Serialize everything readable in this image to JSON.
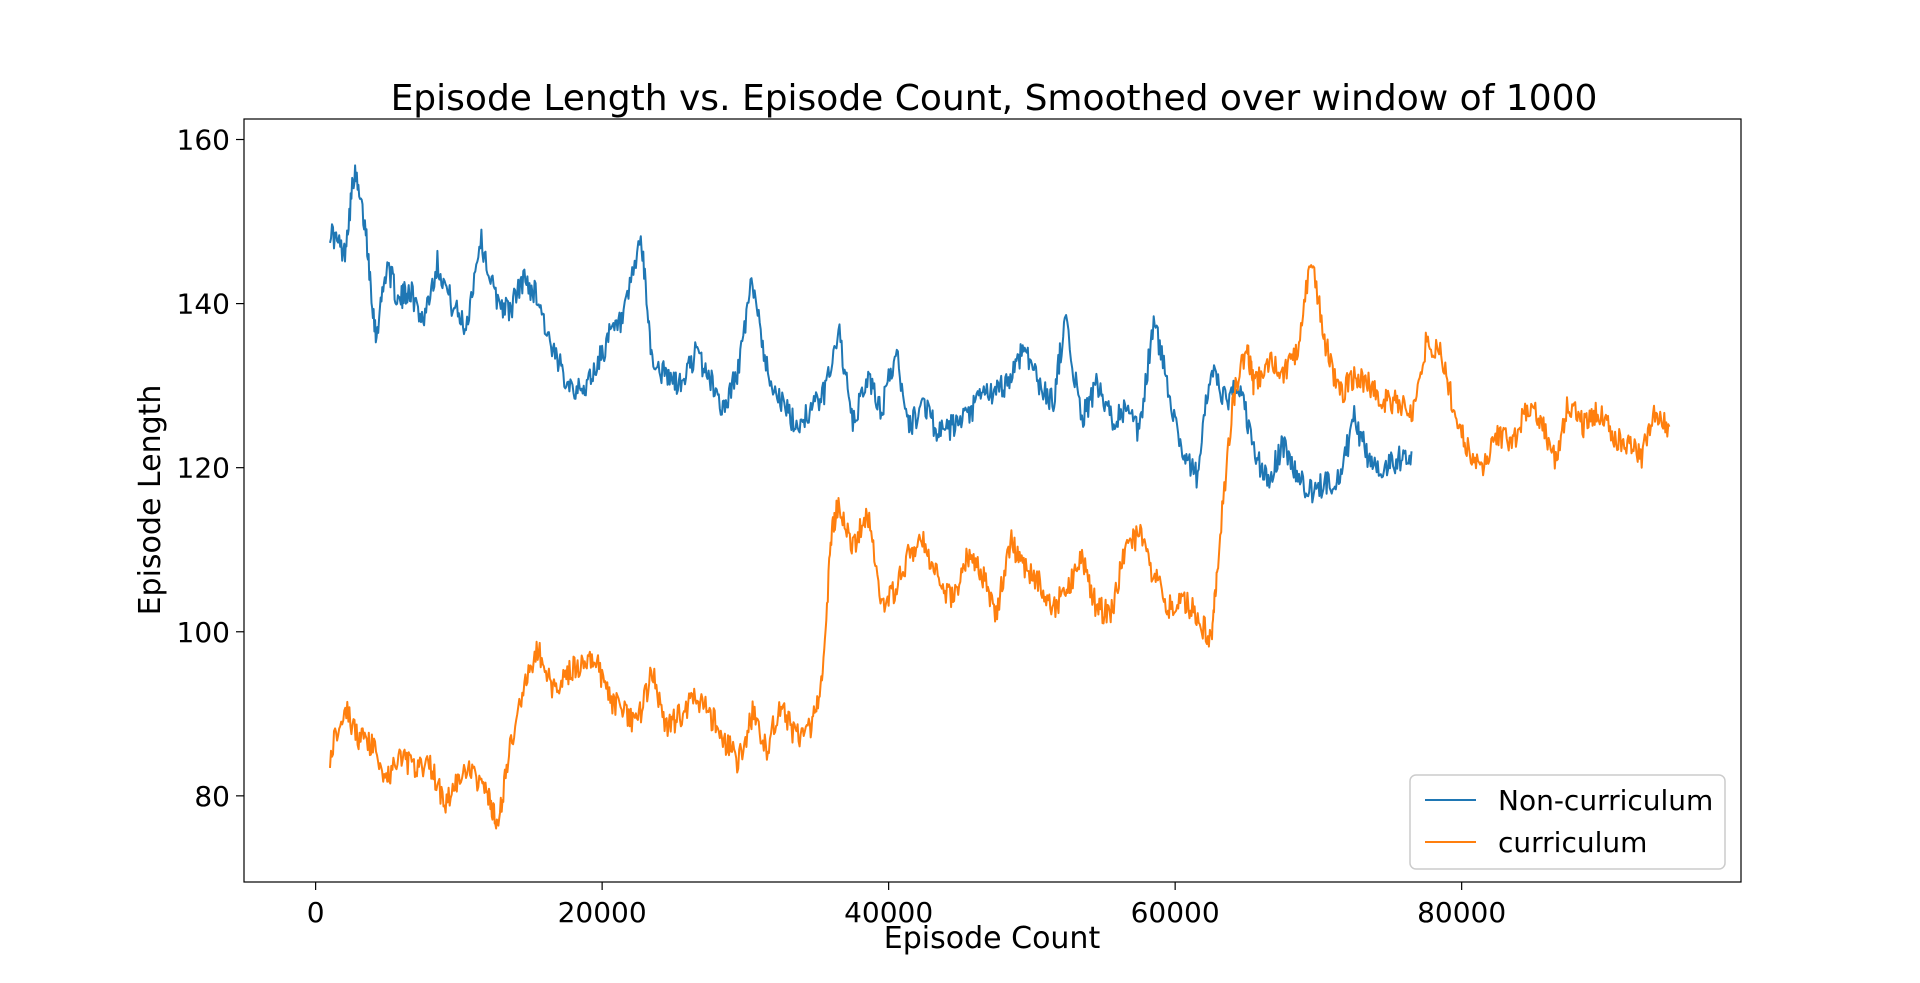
{
  "chart_data": {
    "type": "line",
    "title": "Episode Length vs. Episode Count, Smoothed over window of 1000",
    "xlabel": "Episode Count",
    "ylabel": "Episode Length",
    "xlim": [
      -5000,
      99500
    ],
    "ylim": [
      69.5,
      162.5
    ],
    "xticks": [
      0,
      20000,
      40000,
      60000,
      80000
    ],
    "yticks": [
      80,
      100,
      120,
      140,
      160
    ],
    "grid": false,
    "legend_position": "bottom-right",
    "series": [
      {
        "name": "Non-curriculum",
        "color": "#1f77b4",
        "x": [
          1000,
          2000,
          2700,
          3500,
          4200,
          5000,
          5800,
          6500,
          7500,
          8500,
          9500,
          10500,
          11500,
          12500,
          13500,
          14500,
          15500,
          16500,
          17500,
          18500,
          19500,
          20500,
          21500,
          22700,
          23500,
          24500,
          25500,
          26500,
          27500,
          28500,
          29500,
          30500,
          31500,
          32500,
          33500,
          34500,
          35500,
          36500,
          37500,
          38500,
          39500,
          40500,
          41500,
          42500,
          43500,
          44500,
          45500,
          46500,
          47500,
          48500,
          49500,
          50500,
          51500,
          52300,
          53500,
          54500,
          55500,
          56500,
          57500,
          58500,
          59500,
          60500,
          61500,
          62500,
          63500,
          64500,
          65500,
          66500,
          67500,
          68500,
          69500,
          70500,
          71500,
          72500,
          73500,
          74500,
          75500,
          76500
        ],
        "y": [
          149,
          146,
          156,
          149,
          136,
          145,
          140,
          142,
          138,
          145,
          140,
          137,
          148,
          141,
          139,
          143,
          141,
          134,
          131,
          129,
          132,
          136,
          138,
          148,
          133,
          131,
          130,
          134,
          131,
          127,
          132,
          143,
          132,
          128,
          125,
          127,
          129,
          137,
          125,
          131,
          127,
          134,
          125,
          128,
          124,
          125,
          126,
          129,
          129,
          131,
          135,
          130,
          128,
          138,
          126,
          130,
          126,
          127,
          124,
          138,
          130,
          122,
          119,
          132,
          128,
          130,
          122,
          118,
          123,
          119,
          117,
          118,
          119,
          126,
          121,
          120,
          121,
          122
        ]
      },
      {
        "name": "curriculum",
        "color": "#ff7f0e",
        "x": [
          1000,
          2000,
          3000,
          4000,
          5000,
          6000,
          7000,
          8000,
          9000,
          10000,
          11000,
          12000,
          12700,
          13500,
          14500,
          15500,
          16500,
          17500,
          18500,
          19500,
          20500,
          21500,
          22500,
          23500,
          24500,
          25500,
          26500,
          27500,
          28500,
          29500,
          30500,
          31500,
          32500,
          33500,
          34500,
          35300,
          36000,
          36500,
          37500,
          38500,
          39500,
          40500,
          41500,
          42500,
          43500,
          44500,
          45500,
          46500,
          47500,
          48500,
          49500,
          50500,
          51500,
          52500,
          53500,
          54500,
          55500,
          56500,
          57500,
          58500,
          59500,
          60500,
          61500,
          62500,
          63000,
          64000,
          65000,
          65500,
          66500,
          67500,
          68500,
          69500,
          70500,
          71500,
          72500,
          73500,
          74500,
          75500,
          76500,
          77500,
          78500,
          79500,
          80500,
          81500,
          82500,
          83500,
          84500,
          85500,
          86500,
          87500,
          88500,
          89500,
          90500,
          91500,
          92500,
          93500,
          94500
        ],
        "y": [
          85,
          91,
          87,
          86,
          82,
          85,
          83,
          84,
          79,
          82,
          83,
          80,
          76,
          85,
          93,
          98,
          93,
          95,
          96,
          97,
          92,
          90,
          89,
          95,
          88,
          90,
          92,
          90,
          87,
          84,
          90,
          86,
          91,
          87,
          88,
          93,
          112,
          116,
          110,
          115,
          103,
          105,
          110,
          111,
          106,
          104,
          109,
          107,
          102,
          111,
          108,
          106,
          103,
          105,
          109,
          103,
          102,
          110,
          112,
          107,
          103,
          104,
          102,
          99,
          109,
          128,
          135,
          130,
          133,
          131,
          134,
          146,
          135,
          129,
          131,
          130,
          128,
          128,
          126,
          135,
          134,
          127,
          122,
          120,
          124,
          123,
          127,
          126,
          121,
          128,
          125,
          127,
          124,
          123,
          121,
          127,
          125
        ]
      }
    ]
  }
}
